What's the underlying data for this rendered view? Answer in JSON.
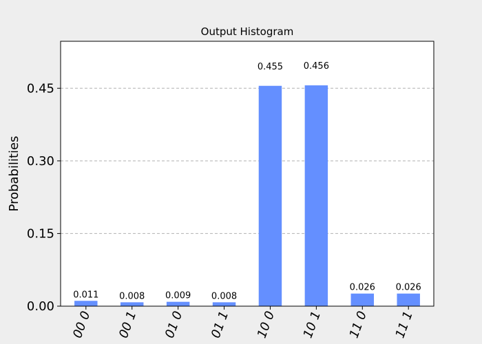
{
  "chart_data": {
    "type": "bar",
    "title": "Output Histogram",
    "xlabel": "",
    "ylabel": "Probabilities",
    "categories": [
      "00 0",
      "00 1",
      "01 0",
      "01 1",
      "10 0",
      "10 1",
      "11 0",
      "11 1"
    ],
    "values": [
      0.011,
      0.008,
      0.009,
      0.008,
      0.455,
      0.456,
      0.026,
      0.026
    ],
    "data_labels": [
      "0.011",
      "0.008",
      "0.009",
      "0.008",
      "0.455",
      "0.456",
      "0.026",
      "0.026"
    ],
    "ylim": [
      0,
      0.547
    ],
    "yticks": [
      0.0,
      0.15,
      0.3,
      0.45
    ],
    "ytick_labels": [
      "0.00",
      "0.15",
      "0.30",
      "0.45"
    ],
    "grid": "horizontal-dashed",
    "bar_color": "#648fff",
    "grid_color": "#b0b0b0",
    "background_color": "#eeeeee",
    "plot_background_color": "#ffffff"
  }
}
